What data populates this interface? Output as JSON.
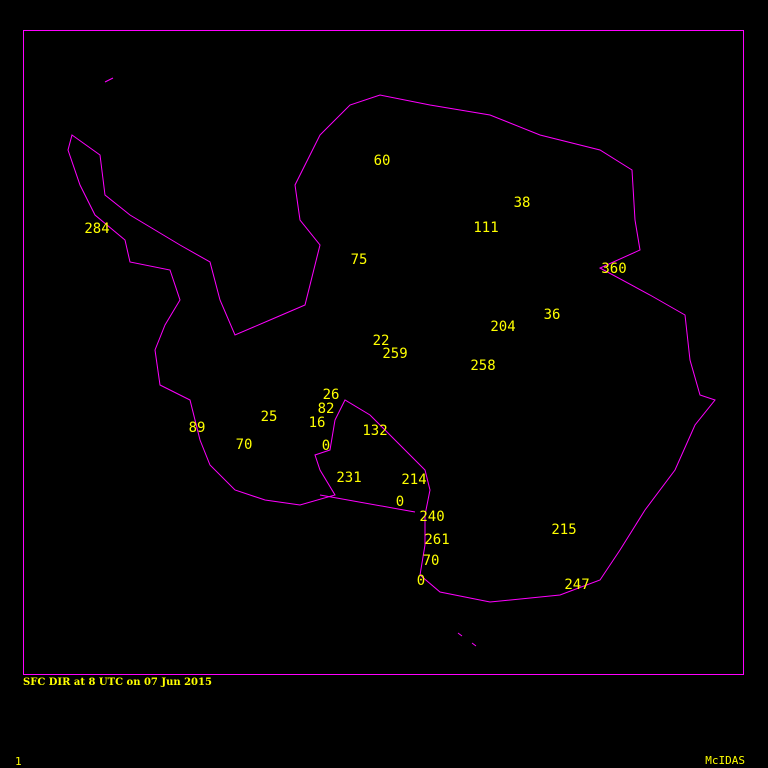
{
  "title": "SFC DIR at 8 UTC on 07 Jun 2015",
  "frame_number": "1",
  "brand": "McIDAS",
  "colors": {
    "background": "#000000",
    "coastline": "#ff00ff",
    "frame": "#ff00ff",
    "text": "#ffff00"
  },
  "stations": [
    {
      "value": "60"
    },
    {
      "value": "38"
    },
    {
      "value": "111"
    },
    {
      "value": "284"
    },
    {
      "value": "75"
    },
    {
      "value": "360"
    },
    {
      "value": "36"
    },
    {
      "value": "204"
    },
    {
      "value": "22"
    },
    {
      "value": "259"
    },
    {
      "value": "258"
    },
    {
      "value": "26"
    },
    {
      "value": "82"
    },
    {
      "value": "25"
    },
    {
      "value": "16"
    },
    {
      "value": "89"
    },
    {
      "value": "70"
    },
    {
      "value": "0"
    },
    {
      "value": "132"
    },
    {
      "value": "231"
    },
    {
      "value": "214"
    },
    {
      "value": "0"
    },
    {
      "value": "240"
    },
    {
      "value": "215"
    },
    {
      "value": "261"
    },
    {
      "value": "70"
    },
    {
      "value": "0"
    },
    {
      "value": "247"
    }
  ]
}
